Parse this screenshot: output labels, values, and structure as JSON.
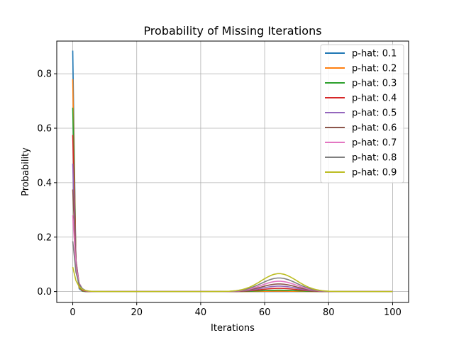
{
  "chart_data": {
    "type": "line",
    "title": "Probability of Missing Iterations",
    "xlabel": "Iterations",
    "ylabel": "Probability",
    "xlim": [
      -5,
      105
    ],
    "ylim": [
      -0.04,
      0.92
    ],
    "xticks": [
      0,
      20,
      40,
      60,
      80,
      100
    ],
    "yticks": [
      0.0,
      0.2,
      0.4,
      0.6,
      0.8
    ],
    "ytick_labels": [
      "0.0",
      "0.2",
      "0.4",
      "0.6",
      "0.8"
    ],
    "grid": true,
    "legend_position": "top-right",
    "series": [
      {
        "name": "p-hat: 0.1",
        "color": "#1f77b4",
        "decay_start": 0.885,
        "decay_rate": 2.2,
        "bump_peak": 0.0
      },
      {
        "name": "p-hat: 0.2",
        "color": "#ff7f0e",
        "decay_start": 0.78,
        "decay_rate": 2.0,
        "bump_peak": 0.0015
      },
      {
        "name": "p-hat: 0.3",
        "color": "#2ca02c",
        "decay_start": 0.675,
        "decay_rate": 1.8,
        "bump_peak": 0.005
      },
      {
        "name": "p-hat: 0.4",
        "color": "#d62728",
        "decay_start": 0.575,
        "decay_rate": 1.6,
        "bump_peak": 0.012
      },
      {
        "name": "p-hat: 0.5",
        "color": "#9467bd",
        "decay_start": 0.47,
        "decay_rate": 1.4,
        "bump_peak": 0.02
      },
      {
        "name": "p-hat: 0.6",
        "color": "#8c564b",
        "decay_start": 0.375,
        "decay_rate": 1.25,
        "bump_peak": 0.028
      },
      {
        "name": "p-hat: 0.7",
        "color": "#e377c2",
        "decay_start": 0.28,
        "decay_rate": 1.1,
        "bump_peak": 0.038
      },
      {
        "name": "p-hat: 0.8",
        "color": "#7f7f7f",
        "decay_start": 0.185,
        "decay_rate": 0.95,
        "bump_peak": 0.05
      },
      {
        "name": "p-hat: 0.9",
        "color": "#bcbd22",
        "decay_start": 0.09,
        "decay_rate": 0.8,
        "bump_peak": 0.066
      }
    ],
    "bump_center": 64.5,
    "bump_width": 5.5,
    "x_max": 100
  }
}
